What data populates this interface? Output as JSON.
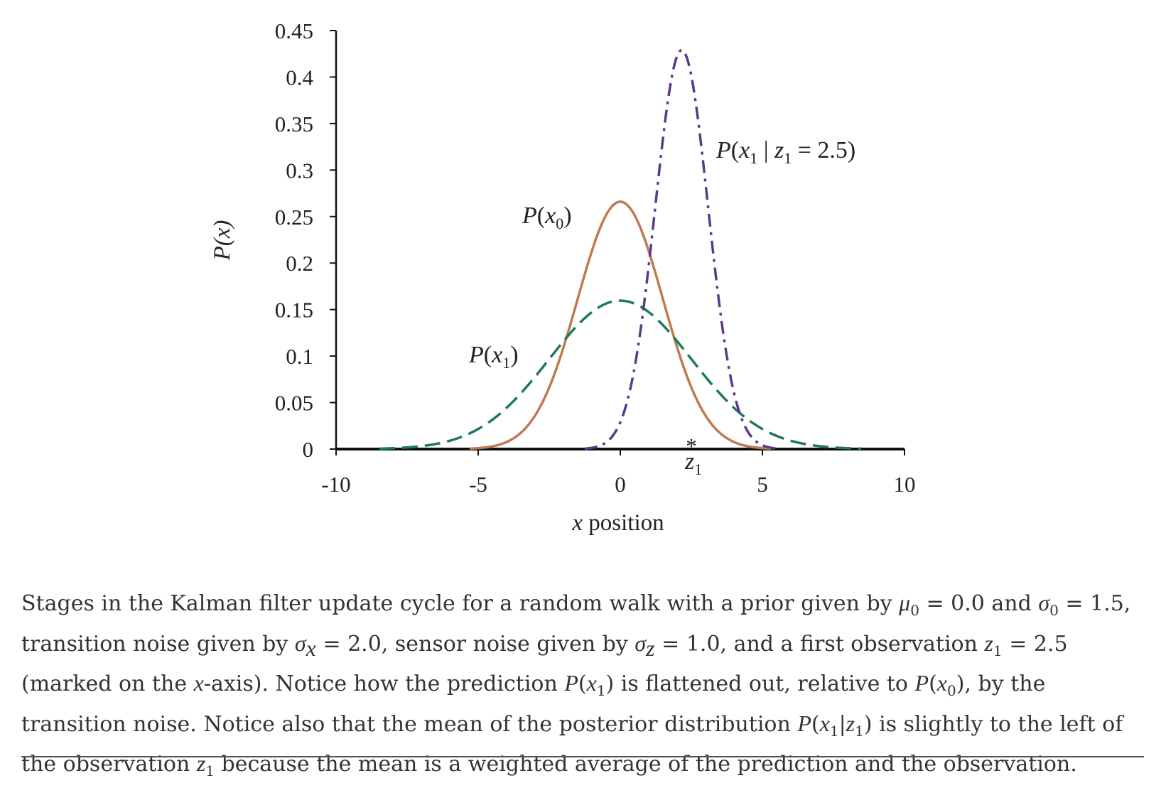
{
  "chart_data": {
    "type": "line",
    "xlabel": "x position",
    "ylabel": "P(x)",
    "xlim": [
      -10,
      10
    ],
    "ylim": [
      0,
      0.45
    ],
    "xticks": [
      "-10",
      "-5",
      "0",
      "5",
      "10"
    ],
    "yticks": [
      "0",
      "0.05",
      "0.1",
      "0.15",
      "0.2",
      "0.25",
      "0.3",
      "0.35",
      "0.4",
      "0.45"
    ],
    "series": [
      {
        "name": "P(x0)",
        "mu": 0.0,
        "sigma": 1.5,
        "style": "solid",
        "color": "#c07a52"
      },
      {
        "name": "P(x1)",
        "mu": 0.0,
        "sigma": 2.5,
        "style": "dashed",
        "color": "#1e7a5a"
      },
      {
        "name": "P(x1 | z1 = 2.5)",
        "mu": 2.16,
        "sigma": 0.93,
        "style": "dash-dot",
        "color": "#5b3a8c"
      }
    ],
    "observation": {
      "label": "z1",
      "x": 2.5,
      "marker": "*"
    },
    "labels": {
      "p_x0": "P(x0)",
      "p_x1": "P(x1)",
      "posterior": "P(x1 | z1 = 2.5)",
      "z1": "z1"
    }
  },
  "caption": {
    "text": "Stages in the Kalman filter update cycle for a random walk with a prior given by μ0 = 0.0 and σ0 = 1.5, transition noise given by σx = 2.0, sensor noise given by σz = 1.0, and a first observation z1 = 2.5 (marked on the x-axis). Notice how the prediction P(x1) is flattened out, relative to P(x0), by the transition noise. Notice also that the mean of the posterior distribution P(x1|z1) is slightly to the left of the observation z1 because the mean is a weighted average of the prediction and the observation."
  }
}
